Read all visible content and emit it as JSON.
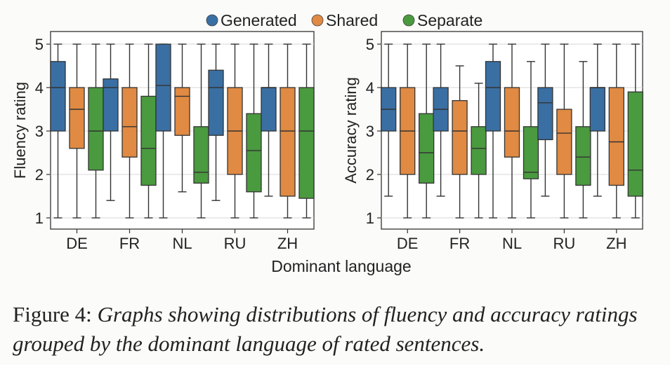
{
  "legend": {
    "items": [
      {
        "name": "Generated",
        "color": "#3a6fa3"
      },
      {
        "name": "Shared",
        "color": "#e08a43"
      },
      {
        "name": "Separate",
        "color": "#4a9a3f"
      }
    ]
  },
  "shared_xlabel": "Dominant language",
  "caption": {
    "label": "Figure 4:",
    "text": "Graphs showing distributions of fluency and accuracy ratings grouped by the dominant language of rated sentences."
  },
  "chart_data": [
    {
      "type": "box",
      "ylabel": "Fluency rating",
      "categories": [
        "DE",
        "FR",
        "NL",
        "RU",
        "ZH"
      ],
      "ylim": [
        1,
        5
      ],
      "yticks": [
        1,
        2,
        3,
        4,
        5
      ],
      "grid": true,
      "series": [
        {
          "name": "Generated",
          "color": "#3a6fa3",
          "boxes": [
            {
              "min": 1,
              "q1": 3.0,
              "median": 4.0,
              "q3": 4.6,
              "max": 5
            },
            {
              "min": 1.4,
              "q1": 3.0,
              "median": 4.0,
              "q3": 4.2,
              "max": 5
            },
            {
              "min": 1,
              "q1": 3.0,
              "median": 4.05,
              "q3": 5.0,
              "max": 5
            },
            {
              "min": 1.4,
              "q1": 2.9,
              "median": 4.0,
              "q3": 4.4,
              "max": 5
            },
            {
              "min": 1.5,
              "q1": 3.0,
              "median": 4.0,
              "q3": 4.0,
              "max": 5
            }
          ]
        },
        {
          "name": "Shared",
          "color": "#e08a43",
          "boxes": [
            {
              "min": 1,
              "q1": 2.6,
              "median": 3.5,
              "q3": 4.0,
              "max": 5
            },
            {
              "min": 1,
              "q1": 2.4,
              "median": 3.1,
              "q3": 4.0,
              "max": 5
            },
            {
              "min": 1.6,
              "q1": 2.9,
              "median": 3.8,
              "q3": 4.0,
              "max": 5
            },
            {
              "min": 1,
              "q1": 2.0,
              "median": 3.0,
              "q3": 4.0,
              "max": 5
            },
            {
              "min": 1,
              "q1": 1.5,
              "median": 3.0,
              "q3": 4.0,
              "max": 5
            }
          ]
        },
        {
          "name": "Separate",
          "color": "#4a9a3f",
          "boxes": [
            {
              "min": 1,
              "q1": 2.1,
              "median": 3.0,
              "q3": 4.0,
              "max": 5
            },
            {
              "min": 1,
              "q1": 1.75,
              "median": 2.6,
              "q3": 3.8,
              "max": 5
            },
            {
              "min": 1,
              "q1": 1.8,
              "median": 2.05,
              "q3": 3.1,
              "max": 5
            },
            {
              "min": 1,
              "q1": 1.6,
              "median": 2.55,
              "q3": 3.4,
              "max": 5
            },
            {
              "min": 1,
              "q1": 1.45,
              "median": 3.0,
              "q3": 4.0,
              "max": 5
            }
          ]
        }
      ]
    },
    {
      "type": "box",
      "ylabel": "Accuracy rating",
      "categories": [
        "DE",
        "FR",
        "NL",
        "RU",
        "ZH"
      ],
      "ylim": [
        1,
        5
      ],
      "yticks": [
        1,
        2,
        3,
        4,
        5
      ],
      "grid": true,
      "series": [
        {
          "name": "Generated",
          "color": "#3a6fa3",
          "boxes": [
            {
              "min": 1.5,
              "q1": 3.0,
              "median": 3.5,
              "q3": 4.0,
              "max": 5
            },
            {
              "min": 1.5,
              "q1": 3.0,
              "median": 3.5,
              "q3": 4.0,
              "max": 5
            },
            {
              "min": 1,
              "q1": 3.0,
              "median": 4.0,
              "q3": 4.6,
              "max": 5
            },
            {
              "min": 1.5,
              "q1": 2.8,
              "median": 3.65,
              "q3": 4.0,
              "max": 5
            },
            {
              "min": 1.5,
              "q1": 3.0,
              "median": 4.0,
              "q3": 4.0,
              "max": 5
            }
          ]
        },
        {
          "name": "Shared",
          "color": "#e08a43",
          "boxes": [
            {
              "min": 1,
              "q1": 2.0,
              "median": 3.0,
              "q3": 4.0,
              "max": 5
            },
            {
              "min": 1,
              "q1": 2.0,
              "median": 3.0,
              "q3": 3.7,
              "max": 4.5
            },
            {
              "min": 1,
              "q1": 2.4,
              "median": 3.0,
              "q3": 4.0,
              "max": 5
            },
            {
              "min": 1,
              "q1": 2.0,
              "median": 2.95,
              "q3": 3.5,
              "max": 5
            },
            {
              "min": 1,
              "q1": 1.75,
              "median": 2.75,
              "q3": 4.0,
              "max": 5
            }
          ]
        },
        {
          "name": "Separate",
          "color": "#4a9a3f",
          "boxes": [
            {
              "min": 1,
              "q1": 1.8,
              "median": 2.5,
              "q3": 3.4,
              "max": 5
            },
            {
              "min": 1,
              "q1": 2.0,
              "median": 2.6,
              "q3": 3.1,
              "max": 4.1
            },
            {
              "min": 1,
              "q1": 1.9,
              "median": 2.05,
              "q3": 3.1,
              "max": 4.6
            },
            {
              "min": 1,
              "q1": 1.75,
              "median": 2.4,
              "q3": 3.1,
              "max": 4.6
            },
            {
              "min": 1,
              "q1": 1.5,
              "median": 2.1,
              "q3": 3.9,
              "max": 5
            }
          ]
        }
      ]
    }
  ]
}
